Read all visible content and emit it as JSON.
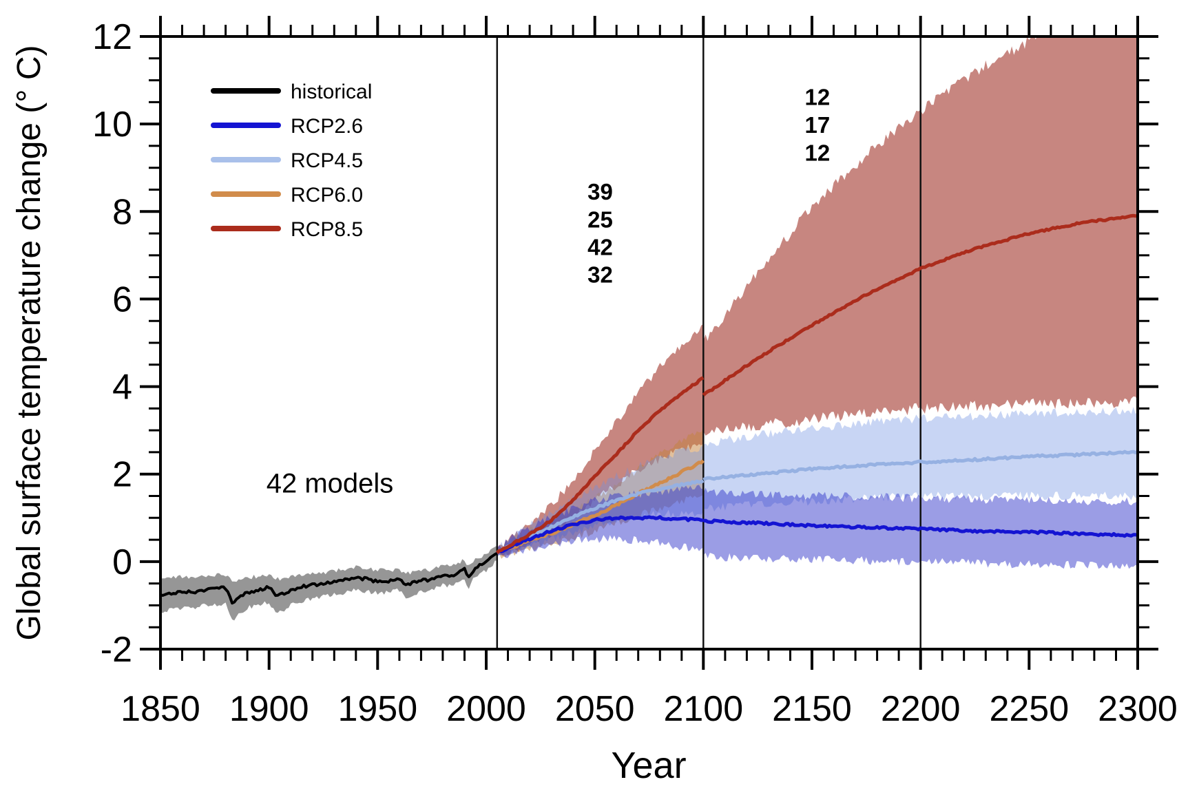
{
  "chart_data": {
    "type": "line",
    "title": "",
    "xlabel": "Year",
    "ylabel": "Global surface temperature change (° C)",
    "xlim": [
      1850,
      2300
    ],
    "ylim": [
      -2,
      12
    ],
    "x_ticks": [
      1850,
      1900,
      1950,
      2000,
      2050,
      2100,
      2150,
      2200,
      2250,
      2300
    ],
    "y_ticks": [
      -2,
      0,
      2,
      4,
      6,
      8,
      10,
      12
    ],
    "x_minor_step": 10,
    "y_minor_step": 0.5,
    "grid": false,
    "vertical_reference_lines": [
      2005,
      2100,
      2200
    ],
    "legend": {
      "position": "top-left",
      "entries": [
        {
          "label": "historical",
          "color": "#000000"
        },
        {
          "label": "RCP2.6",
          "color": "#1414d2"
        },
        {
          "label": "RCP4.5",
          "color": "#a9c0ea"
        },
        {
          "label": "RCP6.0",
          "color": "#d18c4b"
        },
        {
          "label": "RCP8.5",
          "color": "#ab2c1c"
        }
      ]
    },
    "annotations": [
      {
        "text": "42 models",
        "year": 1928,
        "temp": 1.8,
        "color": "#000000",
        "size": 40,
        "weight": "normal"
      },
      {
        "text": "39",
        "year": 2052.5,
        "temp": 8.45,
        "color": "#a63022",
        "size": 33,
        "weight": "bold"
      },
      {
        "text": "25",
        "year": 2052.5,
        "temp": 7.82,
        "color": "#cc8d55",
        "size": 33,
        "weight": "bold"
      },
      {
        "text": "42",
        "year": 2052.5,
        "temp": 7.19,
        "color": "#a8c0ec",
        "size": 33,
        "weight": "bold"
      },
      {
        "text": "32",
        "year": 2052.5,
        "temp": 6.56,
        "color": "#2222cc",
        "size": 33,
        "weight": "bold"
      },
      {
        "text": "12",
        "year": 2152.5,
        "temp": 10.62,
        "color": "#a63022",
        "size": 33,
        "weight": "bold"
      },
      {
        "text": "17",
        "year": 2152.5,
        "temp": 9.98,
        "color": "#a8c0ec",
        "size": 33,
        "weight": "bold"
      },
      {
        "text": "12",
        "year": 2152.5,
        "temp": 9.34,
        "color": "#2222cc",
        "size": 33,
        "weight": "bold"
      }
    ],
    "series": [
      {
        "name": "historical",
        "color": "#000000",
        "band_color": "#969696",
        "line_width": 4,
        "band_jitter": 0.05,
        "line_jitter": 0.035,
        "segments": [
          {
            "suffix": "",
            "points": [
              [
                1850,
                -0.75,
                -1.15,
                -0.38
              ],
              [
                1855,
                -0.72,
                -1.1,
                -0.36
              ],
              [
                1860,
                -0.68,
                -1.05,
                -0.35
              ],
              [
                1865,
                -0.7,
                -1.07,
                -0.36
              ],
              [
                1870,
                -0.65,
                -1.0,
                -0.33
              ],
              [
                1875,
                -0.62,
                -0.98,
                -0.3
              ],
              [
                1880,
                -0.6,
                -0.95,
                -0.3
              ],
              [
                1883,
                -0.95,
                -1.35,
                -0.45
              ],
              [
                1886,
                -0.8,
                -1.2,
                -0.4
              ],
              [
                1890,
                -0.7,
                -1.05,
                -0.36
              ],
              [
                1895,
                -0.66,
                -1.0,
                -0.34
              ],
              [
                1900,
                -0.58,
                -0.92,
                -0.3
              ],
              [
                1903,
                -0.78,
                -1.2,
                -0.4
              ],
              [
                1907,
                -0.72,
                -1.1,
                -0.38
              ],
              [
                1910,
                -0.65,
                -1.0,
                -0.35
              ],
              [
                1915,
                -0.56,
                -0.9,
                -0.3
              ],
              [
                1920,
                -0.54,
                -0.85,
                -0.28
              ],
              [
                1925,
                -0.5,
                -0.8,
                -0.25
              ],
              [
                1930,
                -0.45,
                -0.75,
                -0.2
              ],
              [
                1935,
                -0.42,
                -0.72,
                -0.18
              ],
              [
                1940,
                -0.37,
                -0.65,
                -0.12
              ],
              [
                1945,
                -0.4,
                -0.68,
                -0.15
              ],
              [
                1950,
                -0.46,
                -0.72,
                -0.2
              ],
              [
                1955,
                -0.44,
                -0.7,
                -0.2
              ],
              [
                1960,
                -0.4,
                -0.65,
                -0.16
              ],
              [
                1963,
                -0.55,
                -0.82,
                -0.28
              ],
              [
                1966,
                -0.48,
                -0.75,
                -0.24
              ],
              [
                1970,
                -0.43,
                -0.68,
                -0.2
              ],
              [
                1975,
                -0.42,
                -0.66,
                -0.18
              ],
              [
                1980,
                -0.3,
                -0.52,
                -0.08
              ],
              [
                1983,
                -0.33,
                -0.56,
                -0.1
              ],
              [
                1986,
                -0.28,
                -0.5,
                -0.06
              ],
              [
                1990,
                -0.18,
                -0.4,
                0.04
              ],
              [
                1992,
                -0.36,
                -0.6,
                -0.12
              ],
              [
                1995,
                -0.12,
                -0.32,
                0.08
              ],
              [
                2000,
                -0.02,
                -0.2,
                0.16
              ],
              [
                2005,
                0.2,
                0.02,
                0.38
              ]
            ]
          }
        ]
      },
      {
        "name": "RCP8.5",
        "color": "#ab2c1c",
        "band_color": "rgba(165,60,50,0.62)",
        "line_width": 5,
        "band_jitter": 0.1,
        "line_jitter": 0.02,
        "segments": [
          {
            "suffix": "-pre2100",
            "points": [
              [
                2005,
                0.2,
                0.12,
                0.3
              ],
              [
                2010,
                0.35,
                0.22,
                0.5
              ],
              [
                2020,
                0.62,
                0.42,
                0.88
              ],
              [
                2030,
                0.95,
                0.65,
                1.3
              ],
              [
                2040,
                1.4,
                1.0,
                1.85
              ],
              [
                2050,
                1.95,
                1.4,
                2.55
              ],
              [
                2060,
                2.45,
                1.75,
                3.2
              ],
              [
                2070,
                3.0,
                2.1,
                3.85
              ],
              [
                2080,
                3.45,
                2.35,
                4.45
              ],
              [
                2090,
                3.85,
                2.55,
                4.95
              ],
              [
                2100,
                4.2,
                2.7,
                5.4
              ]
            ]
          },
          {
            "suffix": "-post2100",
            "band_jitter": 0.13,
            "points": [
              [
                2100,
                3.8,
                2.95,
                5.0
              ],
              [
                2125,
                4.65,
                3.1,
                6.6
              ],
              [
                2150,
                5.4,
                3.25,
                8.1
              ],
              [
                2175,
                6.1,
                3.4,
                9.3
              ],
              [
                2200,
                6.7,
                3.5,
                10.3
              ],
              [
                2225,
                7.15,
                3.55,
                11.2
              ],
              [
                2250,
                7.5,
                3.6,
                11.9
              ],
              [
                2275,
                7.75,
                3.62,
                12.4
              ],
              [
                2300,
                7.9,
                3.65,
                12.8
              ]
            ]
          }
        ]
      },
      {
        "name": "RCP6.0",
        "color": "#d18c4b",
        "band_color": "rgba(195,130,60,0.5)",
        "line_width": 5,
        "band_jitter": 0.09,
        "line_jitter": 0.03,
        "segments": [
          {
            "suffix": "",
            "points": [
              [
                2005,
                0.2,
                0.12,
                0.28
              ],
              [
                2010,
                0.3,
                0.18,
                0.44
              ],
              [
                2020,
                0.48,
                0.3,
                0.7
              ],
              [
                2030,
                0.65,
                0.42,
                0.92
              ],
              [
                2040,
                0.85,
                0.55,
                1.2
              ],
              [
                2050,
                1.05,
                0.7,
                1.45
              ],
              [
                2060,
                1.3,
                0.88,
                1.75
              ],
              [
                2070,
                1.55,
                1.05,
                2.1
              ],
              [
                2080,
                1.8,
                1.22,
                2.45
              ],
              [
                2090,
                2.05,
                1.38,
                2.75
              ],
              [
                2100,
                2.3,
                1.52,
                3.05
              ]
            ]
          }
        ]
      },
      {
        "name": "RCP4.5",
        "color": "#96b1e2",
        "band_color": "rgba(110,145,225,0.38)",
        "line_width": 5,
        "band_jitter": 0.1,
        "line_jitter": 0.025,
        "segments": [
          {
            "suffix": "-pre2100",
            "points": [
              [
                2005,
                0.2,
                0.13,
                0.3
              ],
              [
                2010,
                0.33,
                0.2,
                0.48
              ],
              [
                2020,
                0.58,
                0.38,
                0.82
              ],
              [
                2030,
                0.8,
                0.52,
                1.1
              ],
              [
                2040,
                1.02,
                0.68,
                1.42
              ],
              [
                2050,
                1.22,
                0.82,
                1.68
              ],
              [
                2060,
                1.4,
                0.95,
                1.95
              ],
              [
                2070,
                1.55,
                1.02,
                2.18
              ],
              [
                2080,
                1.66,
                1.08,
                2.38
              ],
              [
                2090,
                1.76,
                1.1,
                2.52
              ],
              [
                2100,
                1.85,
                1.12,
                2.62
              ]
            ]
          },
          {
            "suffix": "-post2100",
            "points": [
              [
                2100,
                1.88,
                1.2,
                2.68
              ],
              [
                2125,
                2.0,
                1.3,
                2.9
              ],
              [
                2150,
                2.12,
                1.38,
                3.05
              ],
              [
                2175,
                2.2,
                1.45,
                3.18
              ],
              [
                2200,
                2.27,
                1.5,
                3.27
              ],
              [
                2225,
                2.33,
                1.5,
                3.33
              ],
              [
                2250,
                2.4,
                1.5,
                3.38
              ],
              [
                2275,
                2.45,
                1.5,
                3.42
              ],
              [
                2300,
                2.5,
                1.5,
                3.45
              ]
            ]
          }
        ]
      },
      {
        "name": "RCP2.6",
        "color": "#1414d2",
        "band_color": "rgba(45,50,200,0.48)",
        "line_width": 5,
        "band_jitter": 0.1,
        "line_jitter": 0.025,
        "segments": [
          {
            "suffix": "-pre2100",
            "points": [
              [
                2005,
                0.2,
                0.12,
                0.3
              ],
              [
                2010,
                0.32,
                0.18,
                0.48
              ],
              [
                2020,
                0.52,
                0.3,
                0.78
              ],
              [
                2030,
                0.7,
                0.4,
                1.0
              ],
              [
                2040,
                0.85,
                0.48,
                1.22
              ],
              [
                2050,
                0.95,
                0.52,
                1.38
              ],
              [
                2060,
                1.0,
                0.52,
                1.5
              ],
              [
                2070,
                1.0,
                0.48,
                1.55
              ],
              [
                2080,
                1.0,
                0.42,
                1.6
              ],
              [
                2090,
                0.97,
                0.35,
                1.65
              ],
              [
                2100,
                0.95,
                0.3,
                1.68
              ]
            ]
          },
          {
            "suffix": "-post2100",
            "points": [
              [
                2100,
                0.93,
                0.12,
                1.6
              ],
              [
                2125,
                0.88,
                0.08,
                1.52
              ],
              [
                2150,
                0.82,
                0.05,
                1.5
              ],
              [
                2175,
                0.78,
                0.02,
                1.48
              ],
              [
                2200,
                0.75,
                0.0,
                1.45
              ],
              [
                2225,
                0.7,
                -0.04,
                1.42
              ],
              [
                2250,
                0.68,
                -0.06,
                1.4
              ],
              [
                2275,
                0.63,
                -0.08,
                1.38
              ],
              [
                2300,
                0.6,
                -0.1,
                1.38
              ]
            ]
          }
        ]
      }
    ],
    "line_draw_order": [
      "historical",
      "RCP6.0",
      "RCP4.5",
      "RCP2.6",
      "RCP8.5"
    ]
  }
}
